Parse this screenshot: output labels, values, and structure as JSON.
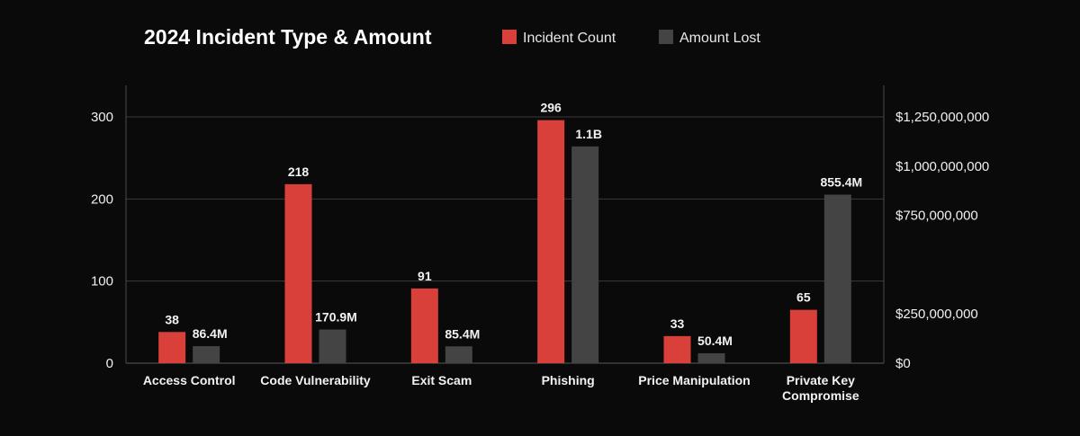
{
  "chart_data": {
    "type": "bar",
    "title": "2024 Incident Type & Amount",
    "categories": [
      "Access Control",
      "Code Vulnerability",
      "Exit Scam",
      "Phishing",
      "Price Manipulation",
      "Private Key Compromise"
    ],
    "series": [
      {
        "name": "Incident Count",
        "axis": "left",
        "color": "#d9403a",
        "values": [
          38,
          218,
          91,
          296,
          33,
          65
        ],
        "labels": [
          "38",
          "218",
          "91",
          "296",
          "33",
          "65"
        ]
      },
      {
        "name": "Amount Lost",
        "axis": "right",
        "color": "#444444",
        "values": [
          86400000,
          170900000,
          85400000,
          1100000000,
          50400000,
          855400000
        ],
        "labels": [
          "86.4M",
          "170.9M",
          "85.4M",
          "1.1B",
          "50.4M",
          "855.4M"
        ]
      }
    ],
    "y_left": {
      "ticks": [
        0,
        100,
        200,
        300
      ],
      "tick_labels": [
        "0",
        "100",
        "200",
        "300"
      ]
    },
    "y_right": {
      "ticks": [
        0,
        250000000,
        750000000,
        1000000000,
        1250000000
      ],
      "tick_labels": [
        "$0",
        "$250,000,000",
        "$750,000,000",
        "$1,000,000,000",
        "$1,250,000,000"
      ]
    },
    "legend": "top",
    "grid": true
  }
}
